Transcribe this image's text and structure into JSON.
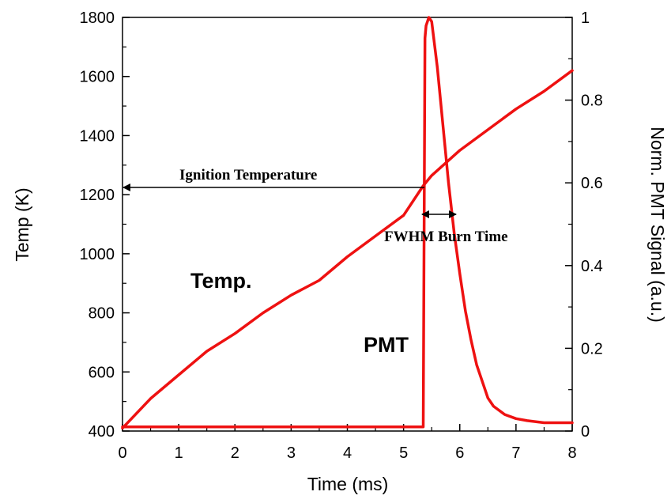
{
  "chart_data": {
    "type": "line",
    "title": "",
    "xlabel": "Time (ms)",
    "ylabel": "Temp (K)",
    "y2label": "Norm. PMT Signal (a.u.)",
    "xlim": [
      0,
      8
    ],
    "ylim": [
      400,
      1800
    ],
    "y2lim": [
      0,
      1
    ],
    "x_ticks": [
      "0",
      "1",
      "2",
      "3",
      "4",
      "5",
      "6",
      "7",
      "8"
    ],
    "y_ticks": [
      "400",
      "600",
      "800",
      "1000",
      "1200",
      "1400",
      "1600",
      "1800"
    ],
    "y2_ticks": [
      "0",
      "0.2",
      "0.4",
      "0.6",
      "0.8",
      "1"
    ],
    "grid": false,
    "series": [
      {
        "name": "Temp.",
        "axis": "left",
        "color": "#ee1111",
        "x": [
          0,
          0.5,
          1,
          1.5,
          2,
          2.5,
          3,
          3.5,
          4,
          4.5,
          5,
          5.35,
          5.5,
          6,
          6.5,
          7,
          7.5,
          8
        ],
        "y": [
          410,
          510,
          590,
          670,
          730,
          800,
          860,
          910,
          990,
          1060,
          1130,
          1230,
          1265,
          1350,
          1420,
          1490,
          1550,
          1620
        ]
      },
      {
        "name": "PMT",
        "axis": "right",
        "color": "#ee1111",
        "x": [
          0,
          1,
          2,
          3,
          4,
          5,
          5.3,
          5.35,
          5.38,
          5.4,
          5.45,
          5.5,
          5.6,
          5.7,
          5.8,
          5.9,
          6.0,
          6.1,
          6.2,
          6.3,
          6.4,
          6.5,
          6.6,
          6.7,
          6.8,
          7.0,
          7.2,
          7.5,
          8
        ],
        "y": [
          0.01,
          0.01,
          0.01,
          0.01,
          0.01,
          0.01,
          0.01,
          0.01,
          0.95,
          0.98,
          1.0,
          0.99,
          0.88,
          0.74,
          0.6,
          0.48,
          0.38,
          0.29,
          0.22,
          0.16,
          0.12,
          0.08,
          0.06,
          0.05,
          0.04,
          0.03,
          0.025,
          0.02,
          0.02
        ]
      }
    ],
    "annotations": {
      "ignition": "Ignition Temperature",
      "fwhm": "FWHM Burn Time",
      "temp_label": "Temp.",
      "pmt_label": "PMT"
    }
  }
}
